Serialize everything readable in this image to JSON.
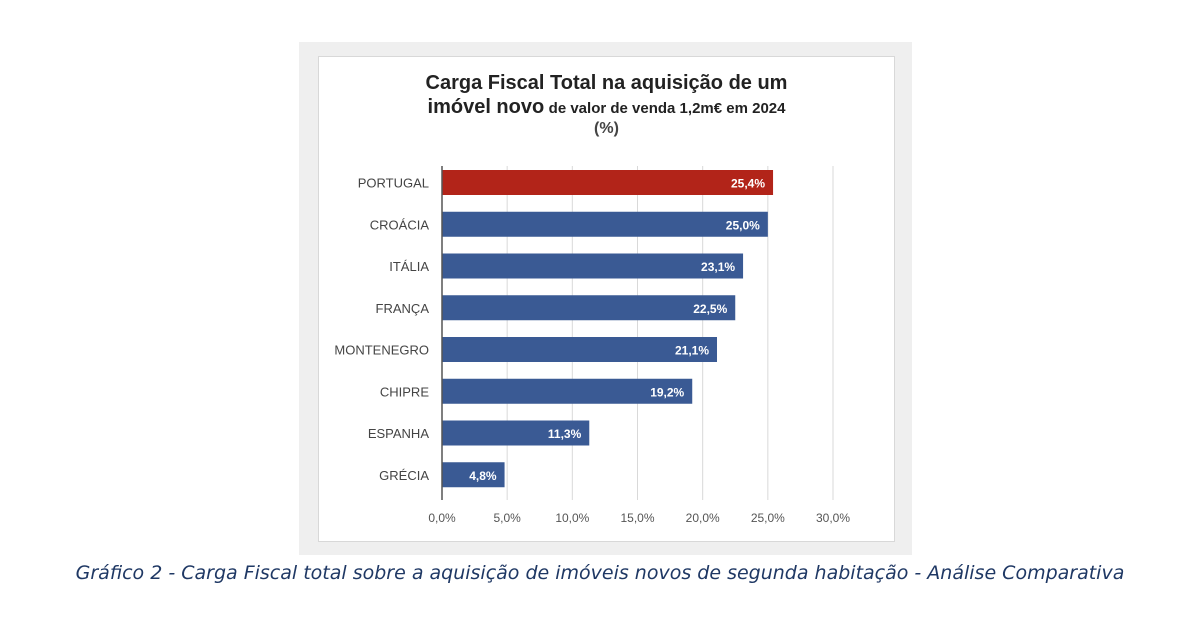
{
  "chart_data": {
    "type": "bar",
    "orientation": "horizontal",
    "title_line1": "Carga Fiscal Total na aquisição de um",
    "title_line2_bold": "imóvel novo",
    "title_line2_rest": "de valor de venda 1,2m€ em 2024",
    "title_unit": "(%)",
    "categories": [
      "PORTUGAL",
      "CROÁCIA",
      "ITÁLIA",
      "FRANÇA",
      "MONTENEGRO",
      "CHIPRE",
      "ESPANHA",
      "GRÉCIA"
    ],
    "values": [
      25.4,
      25.0,
      23.1,
      22.5,
      21.1,
      19.2,
      11.3,
      4.8
    ],
    "value_labels": [
      "25,4%",
      "25,0%",
      "23,1%",
      "22,5%",
      "21,1%",
      "19,2%",
      "11,3%",
      "4,8%"
    ],
    "xlim": [
      0,
      30
    ],
    "x_ticks": [
      0,
      5,
      10,
      15,
      20,
      25,
      30
    ],
    "x_tick_labels": [
      "0,0%",
      "5,0%",
      "10,0%",
      "15,0%",
      "20,0%",
      "25,0%",
      "30,0%"
    ],
    "grid": "vertical",
    "legend": "none",
    "colors": {
      "highlight": "#b22419",
      "default": "#3a5a94"
    },
    "highlight_index": 0
  },
  "caption": "Gráfico 2 - Carga Fiscal total sobre a aquisição de imóveis novos de segunda habitação - Análise Comparativa"
}
